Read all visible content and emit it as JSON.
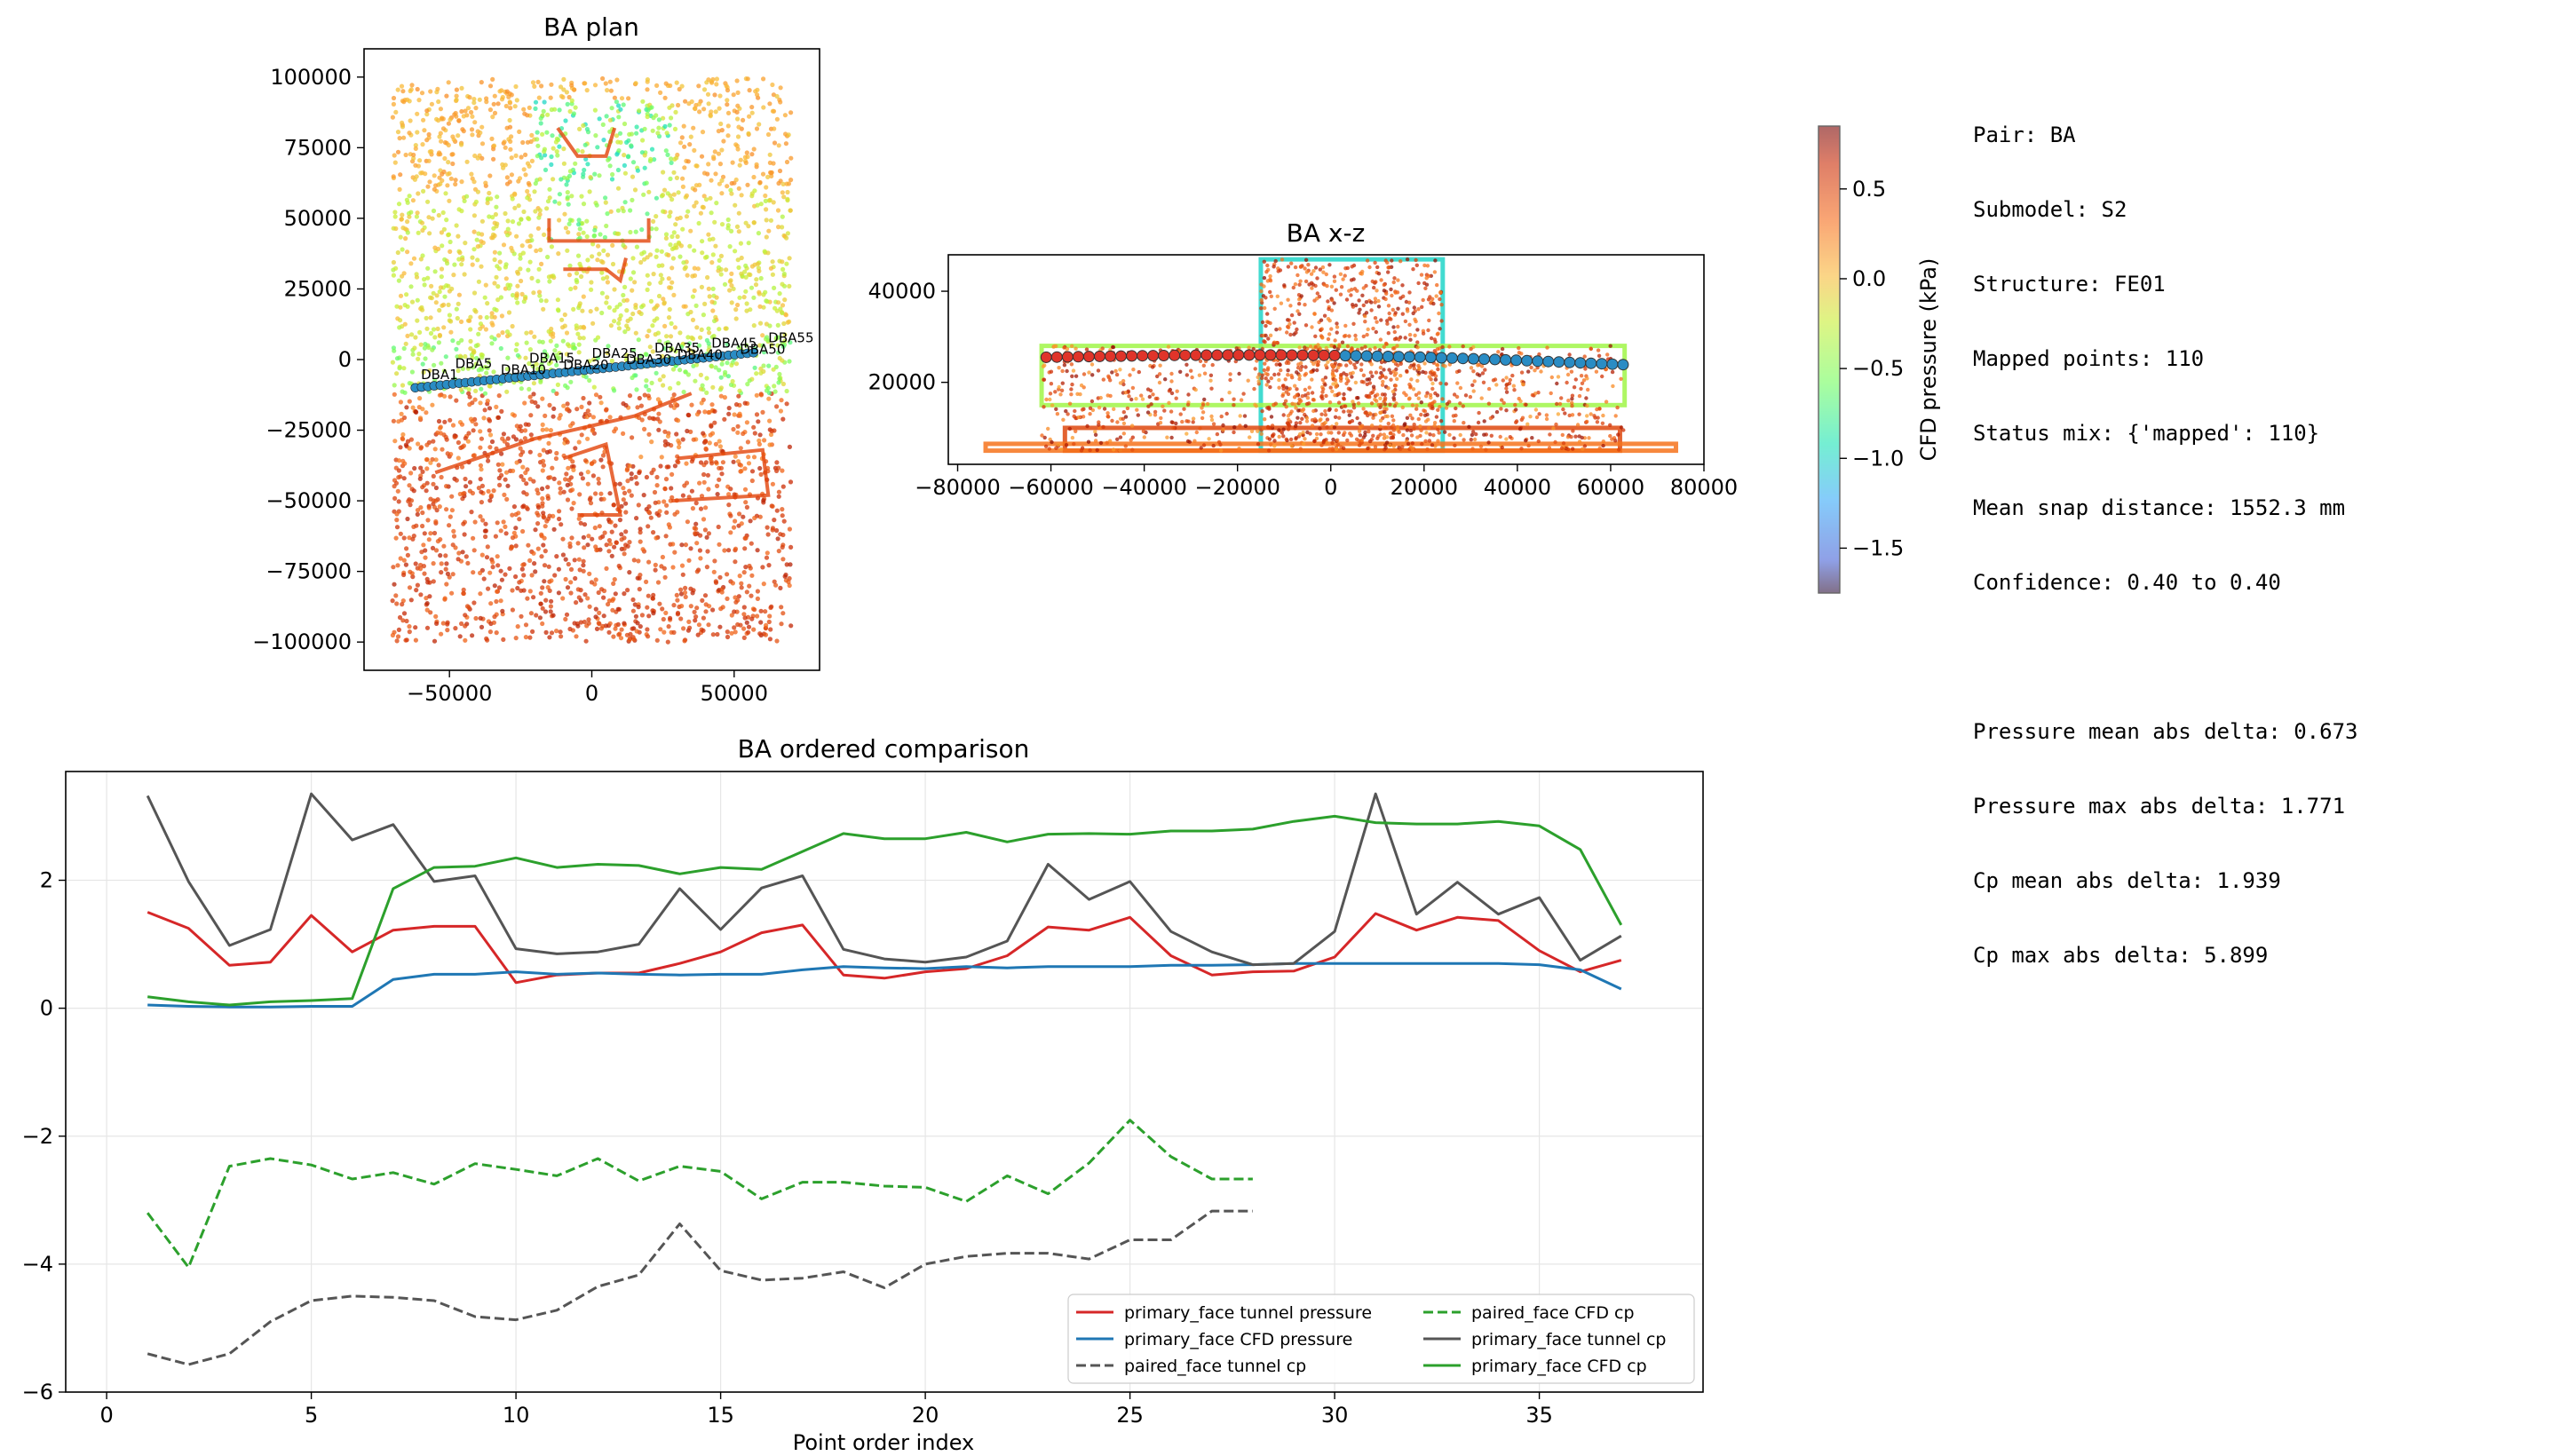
{
  "plan": {
    "title": "BA plan",
    "xticks": [
      -50000,
      0,
      50000
    ],
    "yticks": [
      -100000,
      -75000,
      -50000,
      -25000,
      0,
      25000,
      50000,
      75000,
      100000
    ],
    "xlim": [
      -80000,
      80000
    ],
    "ylim": [
      -110000,
      110000
    ],
    "point_labels": [
      "DBA55",
      "DBA50",
      "DBA45",
      "DBA40",
      "DBA35",
      "DBA30",
      "DBA25",
      "DBA20",
      "DBA15",
      "DBA10",
      "DBA5",
      "DBA1"
    ]
  },
  "xz": {
    "title": "BA x-z",
    "xticks": [
      -80000,
      -60000,
      -40000,
      -20000,
      0,
      20000,
      40000,
      60000,
      80000
    ],
    "yticks": [
      20000,
      40000
    ],
    "xlim": [
      -82000,
      80000
    ],
    "ylim": [
      2000,
      48000
    ]
  },
  "colorbar": {
    "label": "CFD pressure (kPa)",
    "ticks": [
      0.5,
      0.0,
      -0.5,
      -1.0,
      -1.5
    ],
    "range": [
      -1.75,
      0.85
    ]
  },
  "info_lines": [
    "Pair: BA",
    "Submodel: S2",
    "Structure: FE01",
    "Mapped points: 110",
    "Status mix: {'mapped': 110}",
    "Mean snap distance: 1552.3 mm",
    "Confidence: 0.40 to 0.40",
    "",
    "Pressure mean abs delta: 0.673",
    "Pressure max abs delta: 1.771",
    "Cp mean abs delta: 1.939",
    "Cp max abs delta: 5.899"
  ],
  "chart_data": [
    {
      "type": "line",
      "title": "BA ordered comparison",
      "xlabel": "Point order index",
      "ylabel": "",
      "xlim": [
        -1,
        39
      ],
      "ylim": [
        -6,
        3.7
      ],
      "xticks": [
        0,
        5,
        10,
        15,
        20,
        25,
        30,
        35
      ],
      "yticks": [
        -6,
        -4,
        -2,
        0,
        2
      ],
      "grid": true,
      "legend_position": "lower-right",
      "series": [
        {
          "name": "primary_face tunnel pressure",
          "color": "#d62728",
          "dash": false,
          "x": [
            1,
            2,
            3,
            4,
            5,
            6,
            7,
            8,
            9,
            10,
            11,
            12,
            13,
            14,
            15,
            16,
            17,
            18,
            19,
            20,
            21,
            22,
            23,
            24,
            25,
            26,
            27,
            28,
            29,
            30,
            31,
            32,
            33,
            34,
            35,
            36,
            37
          ],
          "values": [
            1.5,
            1.25,
            0.67,
            0.72,
            1.45,
            0.88,
            1.22,
            1.28,
            1.28,
            0.4,
            0.52,
            0.55,
            0.55,
            0.7,
            0.88,
            1.18,
            1.3,
            0.52,
            0.47,
            0.57,
            0.62,
            0.82,
            1.27,
            1.22,
            1.42,
            0.82,
            0.52,
            0.57,
            0.58,
            0.8,
            1.48,
            1.22,
            1.42,
            1.37,
            0.9,
            0.57,
            0.75
          ]
        },
        {
          "name": "primary_face CFD pressure",
          "color": "#1f77b4",
          "dash": false,
          "x": [
            1,
            2,
            3,
            4,
            5,
            6,
            7,
            8,
            9,
            10,
            11,
            12,
            13,
            14,
            15,
            16,
            17,
            18,
            19,
            20,
            21,
            22,
            23,
            24,
            25,
            26,
            27,
            28,
            29,
            30,
            31,
            32,
            33,
            34,
            35,
            36,
            37
          ],
          "values": [
            0.05,
            0.03,
            0.02,
            0.02,
            0.03,
            0.03,
            0.45,
            0.53,
            0.53,
            0.57,
            0.53,
            0.55,
            0.53,
            0.52,
            0.53,
            0.53,
            0.6,
            0.65,
            0.63,
            0.62,
            0.65,
            0.63,
            0.65,
            0.65,
            0.65,
            0.67,
            0.67,
            0.68,
            0.7,
            0.7,
            0.7,
            0.7,
            0.7,
            0.7,
            0.68,
            0.6,
            0.3
          ]
        },
        {
          "name": "paired_face tunnel cp",
          "color": "#555555",
          "dash": true,
          "x": [
            1,
            2,
            3,
            4,
            5,
            6,
            7,
            8,
            9,
            10,
            11,
            12,
            13,
            14,
            15,
            16,
            17,
            18,
            19,
            20,
            21,
            22,
            23,
            24,
            25,
            26,
            27,
            28
          ],
          "values": [
            -5.4,
            -5.57,
            -5.4,
            -4.9,
            -4.57,
            -4.5,
            -4.52,
            -4.57,
            -4.82,
            -4.87,
            -4.72,
            -4.35,
            -4.17,
            -3.37,
            -4.1,
            -4.25,
            -4.22,
            -4.12,
            -4.37,
            -4.0,
            -3.88,
            -3.83,
            -3.83,
            -3.92,
            -3.62,
            -3.62,
            -3.17,
            -3.17
          ]
        },
        {
          "name": "paired_face CFD cp",
          "color": "#2ca02c",
          "dash": true,
          "x": [
            1,
            2,
            3,
            4,
            5,
            6,
            7,
            8,
            9,
            10,
            11,
            12,
            13,
            14,
            15,
            16,
            17,
            18,
            19,
            20,
            21,
            22,
            23,
            24,
            25,
            26,
            27,
            28
          ],
          "values": [
            -3.2,
            -4.05,
            -2.47,
            -2.35,
            -2.45,
            -2.67,
            -2.57,
            -2.75,
            -2.43,
            -2.52,
            -2.62,
            -2.35,
            -2.7,
            -2.47,
            -2.55,
            -2.98,
            -2.72,
            -2.72,
            -2.78,
            -2.8,
            -3.02,
            -2.62,
            -2.9,
            -2.42,
            -1.75,
            -2.32,
            -2.67,
            -2.67
          ]
        },
        {
          "name": "primary_face tunnel cp",
          "color": "#555555",
          "dash": false,
          "x": [
            1,
            2,
            3,
            4,
            5,
            6,
            7,
            8,
            9,
            10,
            11,
            12,
            13,
            14,
            15,
            16,
            17,
            18,
            19,
            20,
            21,
            22,
            23,
            24,
            25,
            26,
            27,
            28,
            29,
            30,
            31,
            32,
            33,
            34,
            35,
            36,
            37
          ],
          "values": [
            3.32,
            1.98,
            0.98,
            1.23,
            3.35,
            2.63,
            2.87,
            1.98,
            2.07,
            0.93,
            0.85,
            0.88,
            1.0,
            1.87,
            1.23,
            1.88,
            2.07,
            0.92,
            0.77,
            0.72,
            0.8,
            1.05,
            2.25,
            1.7,
            1.98,
            1.2,
            0.88,
            0.68,
            0.7,
            1.2,
            3.35,
            1.47,
            1.97,
            1.47,
            1.73,
            0.75,
            1.13
          ]
        },
        {
          "name": "primary_face CFD cp",
          "color": "#2ca02c",
          "dash": false,
          "x": [
            1,
            2,
            3,
            4,
            5,
            6,
            7,
            8,
            9,
            10,
            11,
            12,
            13,
            14,
            15,
            16,
            17,
            18,
            19,
            20,
            21,
            22,
            23,
            24,
            25,
            26,
            27,
            28,
            29,
            30,
            31,
            32,
            33,
            34,
            35,
            36,
            37
          ],
          "values": [
            0.18,
            0.1,
            0.05,
            0.1,
            0.12,
            0.15,
            1.87,
            2.2,
            2.22,
            2.35,
            2.2,
            2.25,
            2.23,
            2.1,
            2.2,
            2.17,
            2.45,
            2.73,
            2.65,
            2.65,
            2.75,
            2.6,
            2.72,
            2.73,
            2.72,
            2.77,
            2.77,
            2.8,
            2.92,
            3.0,
            2.9,
            2.88,
            2.88,
            2.92,
            2.85,
            2.48,
            1.3
          ]
        }
      ]
    }
  ]
}
